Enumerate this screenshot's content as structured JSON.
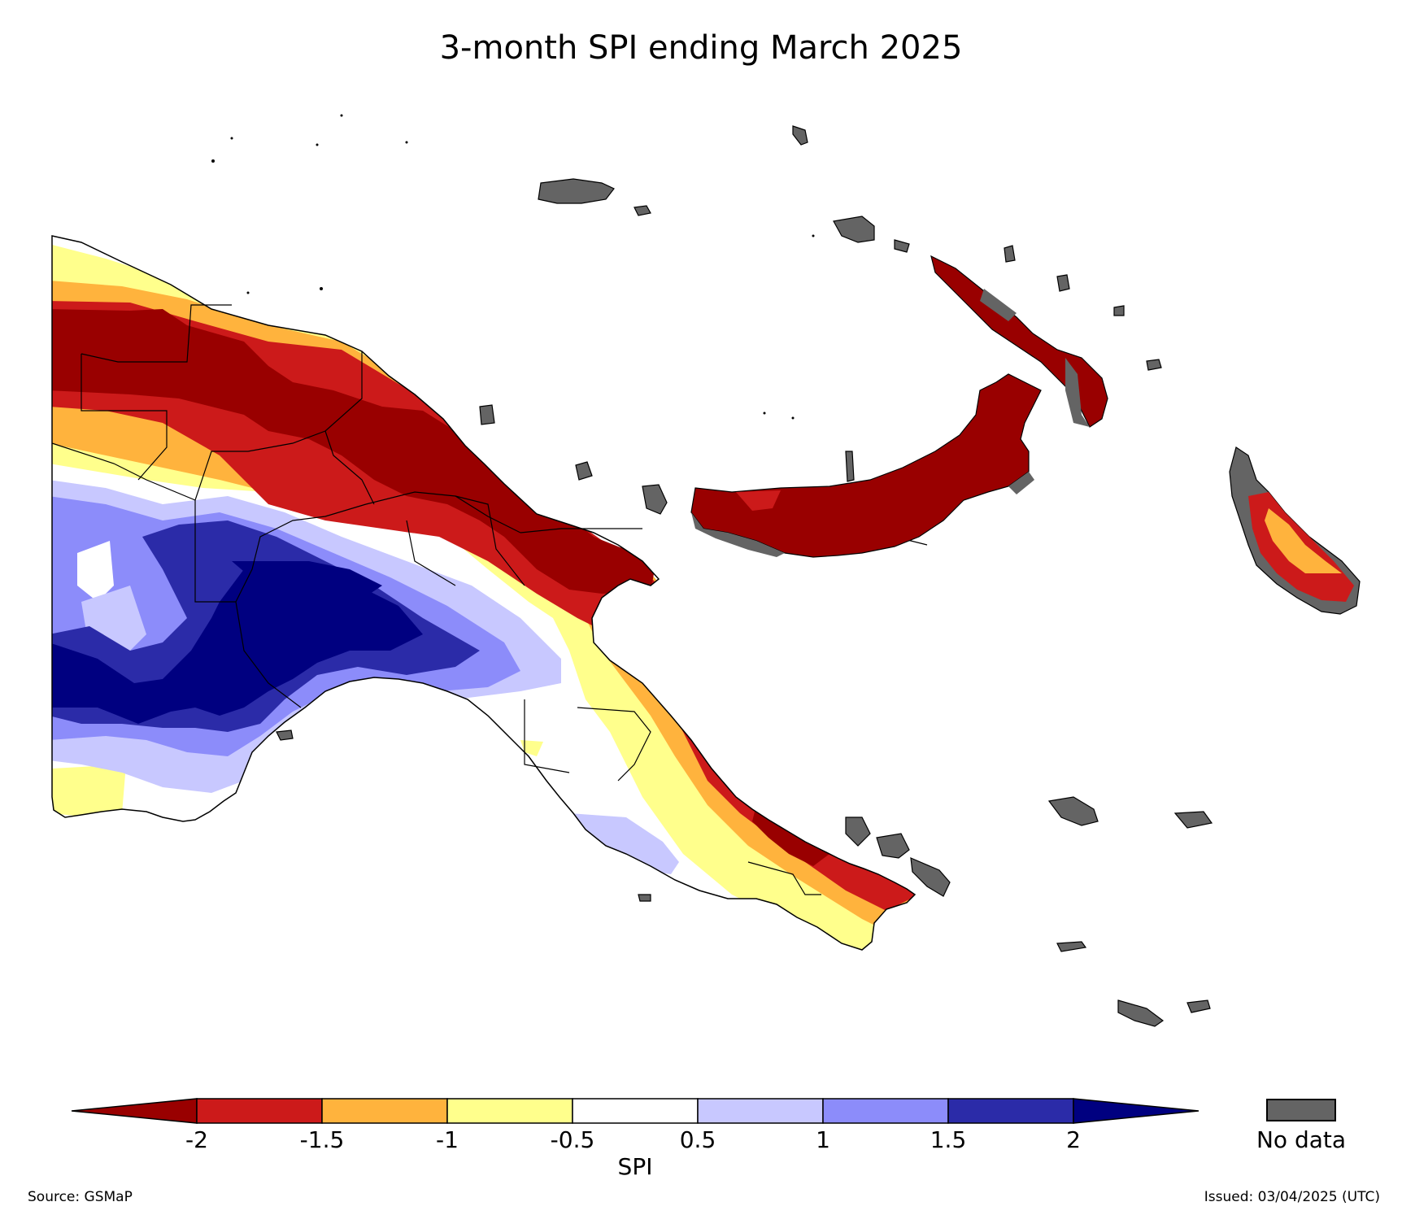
{
  "title": "3-month SPI ending March 2025",
  "colors": {
    "extremely_dry": "#990000",
    "severely_dry": "#cc1a1a",
    "moderately_dry": "#ffb33d",
    "mildly_dry": "#ffff8c",
    "near_normal": "#ffffff",
    "mildly_wet": "#c8c8ff",
    "moderately_wet": "#8c8cfa",
    "severely_wet": "#2b2ba8",
    "extremely_wet": "#000080",
    "no_data": "#646464",
    "boundary": "#000000"
  },
  "colorbar": {
    "label": "SPI",
    "ticks": [
      "-2",
      "-1.5",
      "-1",
      "-0.5",
      "0.5",
      "1",
      "1.5",
      "2"
    ],
    "extend": "both"
  },
  "nodata": {
    "label": "No data"
  },
  "footer": {
    "source": "Source: GSMaP",
    "issued": "Issued: 03/04/2025 (UTC)"
  }
}
